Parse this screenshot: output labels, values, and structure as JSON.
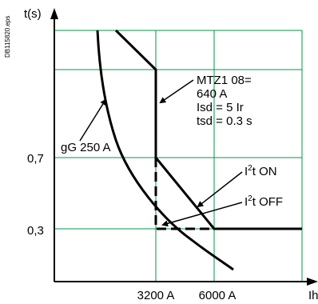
{
  "chart_data": {
    "type": "line",
    "ylabel": "t(s)",
    "xlabel": "Ih",
    "x_ticks": [
      "3200 A",
      "6000 A"
    ],
    "y_ticks": [
      "0,7",
      "0,3"
    ],
    "ref_code": "DB115820.eps",
    "grid": true,
    "series": [
      {
        "name": "gG 250 A",
        "style": "solid"
      },
      {
        "name": "MTZ1 08",
        "style": "solid"
      },
      {
        "name": "I²t ON",
        "style": "solid"
      },
      {
        "name": "I²t OFF",
        "style": "dashed"
      }
    ],
    "annotations": {
      "fuse": "gG 250 A",
      "breaker_lines": [
        "MTZ1 08=",
        "640 A",
        "Isd = 5 Ir",
        "tsd = 0.3 s"
      ],
      "i2t_on": {
        "base": "I",
        "sup": "2",
        "rest": "t ON"
      },
      "i2t_off": {
        "base": "I",
        "sup": "2",
        "rest": "t OFF"
      }
    },
    "colors": {
      "grid": "#009a44",
      "curve": "#000000"
    }
  }
}
